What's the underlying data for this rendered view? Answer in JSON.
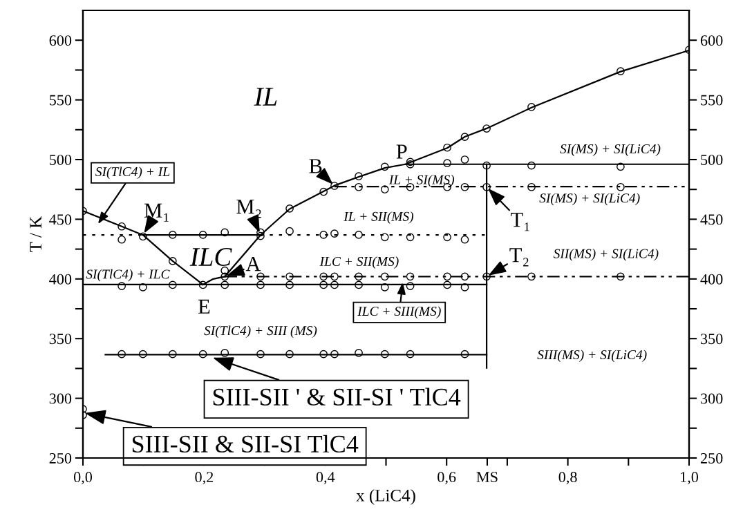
{
  "chart_data": {
    "type": "line",
    "xlabel": "x (LiC4)",
    "ylabel": "T / K",
    "xlim": [
      0,
      1.0
    ],
    "ylim": [
      250,
      625
    ],
    "y2lim": [
      250,
      625
    ],
    "xticks": [
      {
        "value": 0,
        "label": "0,0"
      },
      {
        "value": 0.1,
        "label": null
      },
      {
        "value": 0.2,
        "label": "0,2"
      },
      {
        "value": 0.3,
        "label": null
      },
      {
        "value": 0.4,
        "label": "0,4"
      },
      {
        "value": 0.5,
        "label": null
      },
      {
        "value": 0.6,
        "label": "0,6"
      },
      {
        "value": 0.667,
        "label": "MS"
      },
      {
        "value": 0.7,
        "label": null
      },
      {
        "value": 0.8,
        "label": "0,8"
      },
      {
        "value": 0.9,
        "label": null
      },
      {
        "value": 1.0,
        "label": "1,0"
      }
    ],
    "yticks": [
      250,
      {
        "value": 275,
        "label": null
      },
      300,
      {
        "value": 325,
        "label": null
      },
      350,
      {
        "value": 375,
        "label": null
      },
      400,
      {
        "value": 425,
        "label": null
      },
      450,
      {
        "value": 475,
        "label": null
      },
      500,
      {
        "value": 525,
        "label": null
      },
      550,
      {
        "value": 575,
        "label": null
      },
      600
    ],
    "y2ticks": [
      250,
      {
        "value": 275,
        "label": null
      },
      300,
      {
        "value": 325,
        "label": null
      },
      350,
      {
        "value": 375,
        "label": null
      },
      400,
      {
        "value": 425,
        "label": null
      },
      450,
      {
        "value": 475,
        "label": null
      },
      500,
      {
        "value": 525,
        "label": null
      },
      550,
      {
        "value": 575,
        "label": null
      },
      600
    ],
    "legend": false,
    "grid": false,
    "series": [
      {
        "color": "#000000",
        "line_style": "solid",
        "x": [
          0,
          0.064,
          0.099,
          0.148,
          0.198
        ],
        "values": [
          457,
          444,
          436.8,
          415,
          395.3
        ]
      },
      {
        "color": "#000000",
        "line_style": "solid",
        "x": [
          0.198,
          0.215,
          0.234
        ],
        "values": [
          395.3,
          400,
          402
        ]
      },
      {
        "color": "#000000",
        "line_style": "solid",
        "x": [
          0.234,
          0.293,
          0.341,
          0.397,
          0.415,
          0.455,
          0.498,
          0.532,
          0.601,
          0.63,
          0.666,
          0.74,
          0.887,
          1.0
        ],
        "values": [
          402,
          436.8,
          458.6,
          473.4,
          478.2,
          485.5,
          493,
          496.1,
          509.7,
          519.1,
          526.1,
          543.5,
          573.7,
          591.5
        ]
      },
      {
        "color": "#000000",
        "line_style": "solid",
        "x": [
          0.099,
          0.293
        ],
        "values": [
          436.8,
          436.8
        ]
      },
      {
        "color": "#000000",
        "line_style": "dotted",
        "x": [
          0,
          0.099
        ],
        "values": [
          436.8,
          436.8
        ]
      },
      {
        "color": "#000000",
        "line_style": "dotted",
        "x": [
          0.293,
          0.666
        ],
        "values": [
          436.8,
          436.8
        ]
      },
      {
        "color": "#000000",
        "line_style": "solid",
        "x": [
          0,
          0.666
        ],
        "values": [
          395.3,
          395.3
        ]
      },
      {
        "color": "#000000",
        "line_style": "dashdot",
        "x": [
          0.234,
          1.0
        ],
        "values": [
          402,
          402
        ]
      },
      {
        "color": "#000000",
        "line_style": "dashdot",
        "x": [
          0.415,
          1.0
        ],
        "values": [
          477.3,
          477.3
        ]
      },
      {
        "color": "#000000",
        "line_style": "solid",
        "x": [
          0.532,
          1.0
        ],
        "values": [
          496.1,
          496.1
        ]
      },
      {
        "color": "#000000",
        "line_style": "solid",
        "x": [
          0.037,
          0.666
        ],
        "values": [
          336.6,
          336.6
        ]
      },
      {
        "color": "#000000",
        "line_style": "solid",
        "x": [
          0.666,
          0.666
        ],
        "values": [
          325.4,
          496.1
        ]
      },
      {
        "type": "scatter",
        "color": "#000000",
        "marker": "circle",
        "x": [
          0,
          0.064,
          0.064,
          0.099,
          0.148,
          0.198,
          0.234,
          0.293,
          0.293,
          0.341,
          0.341,
          0.397,
          0.397,
          0.415,
          0.415,
          0.455,
          0.455,
          0.455,
          0.498,
          0.498,
          0.498,
          0.54,
          0.54,
          0.54,
          0.54,
          0.601,
          0.601,
          0.601,
          0.601,
          0.63,
          0.63,
          0.63,
          0.63,
          0.666,
          0.666,
          0.666,
          0.74,
          0.74,
          0.74,
          0.887,
          0.887,
          0.887,
          1.0,
          0.148,
          0.234,
          0.234,
          0.293,
          0.341,
          0.397,
          0.415,
          0.455,
          0.498,
          0.54,
          0.601,
          0.63,
          0.666,
          0.74,
          0.887,
          0.064,
          0.099,
          0.148,
          0.198,
          0.234,
          0.293,
          0.341,
          0.397,
          0.415,
          0.455,
          0.498,
          0.54,
          0.601,
          0.63,
          0.064,
          0.099,
          0.148,
          0.198,
          0.234,
          0.293,
          0.341,
          0.397,
          0.415,
          0.455,
          0.498,
          0.54,
          0.63,
          0,
          0
        ],
        "values": [
          457,
          444,
          433,
          435.5,
          437,
          437,
          439,
          439,
          436,
          459,
          440,
          473,
          437,
          478,
          438,
          486,
          477,
          437,
          494,
          475,
          435,
          498,
          496,
          477,
          435,
          510,
          497,
          477,
          435,
          519,
          500,
          477,
          433,
          526,
          495,
          477,
          544,
          495,
          477,
          574,
          494,
          477,
          592,
          415,
          407,
          402,
          402,
          402,
          402,
          402,
          402,
          402,
          402,
          402,
          402,
          402,
          402,
          402,
          394,
          393,
          395,
          395,
          395,
          395,
          395,
          395,
          395,
          395,
          393,
          394,
          395,
          393,
          337,
          337,
          337,
          337,
          338,
          337,
          337,
          337,
          337,
          338,
          337,
          337,
          337,
          291,
          286
        ]
      }
    ],
    "annotations": [
      "IL",
      "ILC",
      "SI(TlC4) + IL",
      "SI(TlC4) + ILC",
      {
        "text": "M₁",
        "x": 0.099,
        "y": 436.8
      },
      {
        "text": "M₂",
        "x": 0.293,
        "y": 437
      },
      {
        "text": "B",
        "x": 0.415,
        "y": 478
      },
      {
        "text": "P",
        "x": 0.532,
        "y": 496.1
      },
      {
        "text": "A",
        "x": 0.234,
        "y": 402
      },
      {
        "text": "E",
        "x": 0.198,
        "y": 395.3
      },
      {
        "text": "T₁",
        "x": 0.666,
        "y": 477
      },
      {
        "text": "T₂",
        "x": 0.666,
        "y": 402
      },
      "IL + SII(MS)",
      "IL + SI(MS)",
      "ILC + SII(MS)",
      "ILC + SIII(MS)",
      "SI(TlC4) + SIII (MS)",
      "SI(MS) + SI(LiC4)",
      "SI(MS) + SI(LiC4)",
      "SII(MS) + SI(LiC4)",
      "SIII(MS) + SI(LiC4)",
      {
        "text": "SIII-SII ' & SII-SI ' TlC4",
        "x": 0.211,
        "y": 334.6
      },
      {
        "text": "SIII-SII & SII-SI TlC4",
        "x": 0.0,
        "y": 288
      }
    ]
  }
}
